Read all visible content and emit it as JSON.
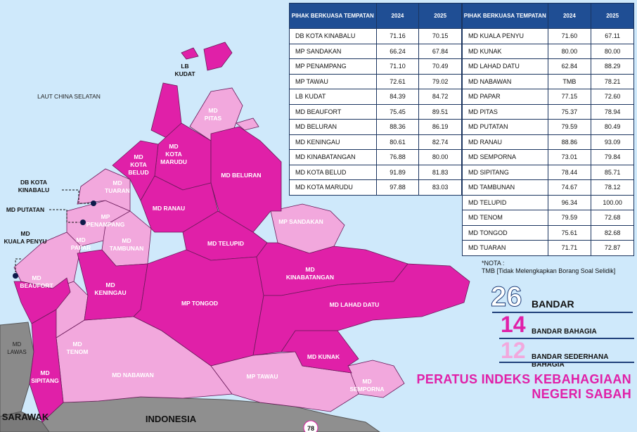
{
  "map": {
    "sea_label": "LAUT CHINA SELATAN",
    "neighbours": {
      "sarawak": "SARAWAK",
      "indonesia": "INDONESIA",
      "lawas_line1": "MD",
      "lawas_line2": "LAWAS"
    },
    "page_number": "78",
    "colors": {
      "sea": "#cfe9fb",
      "bahagia": "#e020a8",
      "sederhana": "#f2a8dd",
      "outside": "#8a8a8a",
      "border": "#6a1a5a"
    },
    "districts": {
      "kudat": [
        "LB",
        "KUDAT"
      ],
      "pitas": [
        "MD",
        "PITAS"
      ],
      "kota_marudu": [
        "MD",
        "KOTA",
        "MARUDU"
      ],
      "kota_belud": [
        "MD",
        "KOTA",
        "BELUD"
      ],
      "tuaran": [
        "MD",
        "TUARAN"
      ],
      "kota_kinabalu": [
        "DB KOTA",
        "KINABALU"
      ],
      "putatan": "MD PUTATAN",
      "penampang": [
        "MP",
        "PENAMPANG"
      ],
      "papar": [
        "MD",
        "PAPAR"
      ],
      "kuala_penyu": [
        "MD",
        "KUALA PENYU"
      ],
      "tambunan": [
        "MD",
        "TAMBUNAN"
      ],
      "ranau": "MD RANAU",
      "beluran": "MD BELURAN",
      "telupid": "MD TELUPID",
      "sandakan": "MP SANDAKAN",
      "beaufort": [
        "MD",
        "BEAUFORT"
      ],
      "keningau": [
        "MD",
        "KENINGAU"
      ],
      "kinabatangan": [
        "MD",
        "KINABATANGAN"
      ],
      "tongod": "MP TONGOD",
      "lahad_datu": "MD LAHAD DATU",
      "tenom": [
        "MD",
        "TENOM"
      ],
      "sipitang": [
        "MD",
        "SIPITANG"
      ],
      "nabawan": "MD NABAWAN",
      "tawau": "MP TAWAU",
      "kunak": "MD KUNAK",
      "semporna": [
        "MD",
        "SEMPORNA"
      ]
    }
  },
  "table": {
    "headers": [
      "PIHAK BERKUASA TEMPATAN",
      "2024",
      "2025"
    ],
    "left_rows": [
      [
        "DB KOTA KINABALU",
        "71.16",
        "70.15"
      ],
      [
        "MP SANDAKAN",
        "66.24",
        "67.84"
      ],
      [
        "MP PENAMPANG",
        "71.10",
        "70.49"
      ],
      [
        "MP TAWAU",
        "72.61",
        "79.02"
      ],
      [
        "LB KUDAT",
        "84.39",
        "84.72"
      ],
      [
        "MD BEAUFORT",
        "75.45",
        "89.51"
      ],
      [
        "MD BELURAN",
        "88.36",
        "86.19"
      ],
      [
        "MD KENINGAU",
        "80.61",
        "82.74"
      ],
      [
        "MD KINABATANGAN",
        "76.88",
        "80.00"
      ],
      [
        "MD KOTA BELUD",
        "91.89",
        "81.83"
      ],
      [
        "MD KOTA MARUDU",
        "97.88",
        "83.03"
      ]
    ],
    "right_rows": [
      [
        "MD KUALA PENYU",
        "71.60",
        "67.11"
      ],
      [
        "MD KUNAK",
        "80.00",
        "80.00"
      ],
      [
        "MD LAHAD DATU",
        "62.84",
        "88.29"
      ],
      [
        "MD NABAWAN",
        "TMB",
        "78.21"
      ],
      [
        "MD PAPAR",
        "77.15",
        "72.60"
      ],
      [
        "MD PITAS",
        "75.37",
        "78.94"
      ],
      [
        "MD PUTATAN",
        "79.59",
        "80.49"
      ],
      [
        "MD RANAU",
        "88.86",
        "93.09"
      ],
      [
        "MD SEMPORNA",
        "73.01",
        "79.84"
      ],
      [
        "MD SIPITANG",
        "78.44",
        "85.71"
      ],
      [
        "MD TAMBUNAN",
        "74.67",
        "78.12"
      ],
      [
        "MD TELUPID",
        "96.34",
        "100.00"
      ],
      [
        "MD TENOM",
        "79.59",
        "72.68"
      ],
      [
        "MD TONGOD",
        "75.61",
        "82.68"
      ],
      [
        "MD TUARAN",
        "71.71",
        "72.87"
      ]
    ]
  },
  "note": {
    "label": "*NOTA :",
    "text": "TMB [Tidak Melengkapkan Borang Soal Selidik]"
  },
  "summary": {
    "total": {
      "count": "26",
      "label": "BANDAR",
      "color": "#1f3f7a"
    },
    "bahagia": {
      "count": "14",
      "label": "BANDAR BAHAGIA",
      "color": "#e020a8"
    },
    "sederhana": {
      "count": "12",
      "label": "BANDAR SEDERHANA BAHAGIA",
      "color": "#f2a8dd"
    }
  },
  "title": {
    "line1": "PERATUS INDEKS KEBAHAGIAAN",
    "line2": "NEGERI SABAH"
  }
}
